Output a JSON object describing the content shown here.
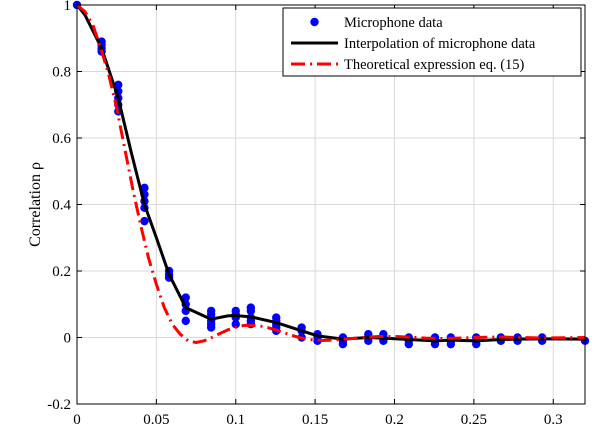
{
  "chart_data": {
    "type": "scatter",
    "title": "",
    "xlabel": "",
    "ylabel": "Correlation ρ",
    "xlim": [
      0,
      0.32
    ],
    "ylim": [
      -0.2,
      1.0
    ],
    "x_ticks": [
      0,
      0.05,
      0.1,
      0.15,
      0.2,
      0.25,
      0.3
    ],
    "x_tick_labels": [
      "0",
      "0.05",
      "0.1",
      "0.15",
      "0.2",
      "0.25",
      "0.3"
    ],
    "y_ticks": [
      -0.2,
      0,
      0.2,
      0.4,
      0.6,
      0.8,
      1.0
    ],
    "y_tick_labels": [
      "-0.2",
      "0",
      "0.2",
      "0.4",
      "0.6",
      "0.8",
      "1"
    ],
    "grid": true,
    "legend_position": "top-right",
    "series": [
      {
        "name": "Microphone data",
        "kind": "scatter",
        "color": "#0000ff",
        "points": [
          [
            0,
            1.0
          ],
          [
            0.0155,
            0.89
          ],
          [
            0.0155,
            0.88
          ],
          [
            0.0155,
            0.87
          ],
          [
            0.0155,
            0.86
          ],
          [
            0.026,
            0.76
          ],
          [
            0.026,
            0.74
          ],
          [
            0.026,
            0.72
          ],
          [
            0.026,
            0.7
          ],
          [
            0.026,
            0.68
          ],
          [
            0.0425,
            0.45
          ],
          [
            0.0425,
            0.43
          ],
          [
            0.0425,
            0.41
          ],
          [
            0.0425,
            0.39
          ],
          [
            0.0425,
            0.35
          ],
          [
            0.058,
            0.2
          ],
          [
            0.058,
            0.19
          ],
          [
            0.058,
            0.18
          ],
          [
            0.0685,
            0.12
          ],
          [
            0.0685,
            0.1
          ],
          [
            0.0685,
            0.08
          ],
          [
            0.0685,
            0.05
          ],
          [
            0.0845,
            0.08
          ],
          [
            0.0845,
            0.07
          ],
          [
            0.0845,
            0.06
          ],
          [
            0.0845,
            0.05
          ],
          [
            0.0845,
            0.04
          ],
          [
            0.0845,
            0.03
          ],
          [
            0.1,
            0.08
          ],
          [
            0.1,
            0.07
          ],
          [
            0.1,
            0.06
          ],
          [
            0.1,
            0.04
          ],
          [
            0.1095,
            0.09
          ],
          [
            0.1095,
            0.08
          ],
          [
            0.1095,
            0.06
          ],
          [
            0.1095,
            0.05
          ],
          [
            0.1095,
            0.04
          ],
          [
            0.1255,
            0.06
          ],
          [
            0.1255,
            0.05
          ],
          [
            0.1255,
            0.04
          ],
          [
            0.1255,
            0.03
          ],
          [
            0.1255,
            0.02
          ],
          [
            0.1415,
            0.03
          ],
          [
            0.1415,
            0.02
          ],
          [
            0.1415,
            0.0
          ],
          [
            0.1515,
            0.01
          ],
          [
            0.1515,
            0.0
          ],
          [
            0.1515,
            -0.01
          ],
          [
            0.1675,
            0.0
          ],
          [
            0.1675,
            -0.01
          ],
          [
            0.1675,
            -0.02
          ],
          [
            0.1835,
            0.01
          ],
          [
            0.1835,
            0.0
          ],
          [
            0.1835,
            -0.01
          ],
          [
            0.193,
            0.01
          ],
          [
            0.193,
            0.0
          ],
          [
            0.193,
            -0.01
          ],
          [
            0.209,
            0.0
          ],
          [
            0.209,
            -0.01
          ],
          [
            0.209,
            -0.02
          ],
          [
            0.2255,
            0.0
          ],
          [
            0.2255,
            -0.01
          ],
          [
            0.2255,
            -0.02
          ],
          [
            0.2355,
            0.0
          ],
          [
            0.2355,
            -0.01
          ],
          [
            0.2355,
            -0.02
          ],
          [
            0.2515,
            0.0
          ],
          [
            0.2515,
            -0.01
          ],
          [
            0.2515,
            -0.02
          ],
          [
            0.267,
            0.0
          ],
          [
            0.267,
            -0.01
          ],
          [
            0.2775,
            0.0
          ],
          [
            0.2775,
            -0.01
          ],
          [
            0.293,
            0.0
          ],
          [
            0.293,
            -0.01
          ],
          [
            0.32,
            -0.01
          ]
        ]
      },
      {
        "name": "Interpolation of microphone data",
        "kind": "line",
        "color": "#000000",
        "points": [
          [
            0,
            1.0
          ],
          [
            0.005,
            0.97
          ],
          [
            0.0155,
            0.87
          ],
          [
            0.026,
            0.72
          ],
          [
            0.034,
            0.56
          ],
          [
            0.0425,
            0.4
          ],
          [
            0.05,
            0.3
          ],
          [
            0.058,
            0.19
          ],
          [
            0.0685,
            0.09
          ],
          [
            0.0845,
            0.055
          ],
          [
            0.095,
            0.065
          ],
          [
            0.1,
            0.066
          ],
          [
            0.1095,
            0.062
          ],
          [
            0.1255,
            0.045
          ],
          [
            0.1415,
            0.02
          ],
          [
            0.1515,
            0.005
          ],
          [
            0.1675,
            -0.005
          ],
          [
            0.1835,
            0.0
          ],
          [
            0.193,
            -0.002
          ],
          [
            0.209,
            -0.006
          ],
          [
            0.2255,
            -0.01
          ],
          [
            0.2355,
            -0.008
          ],
          [
            0.2515,
            -0.01
          ],
          [
            0.267,
            -0.006
          ],
          [
            0.2775,
            -0.005
          ],
          [
            0.293,
            -0.004
          ],
          [
            0.32,
            -0.005
          ]
        ]
      },
      {
        "name": "Theoretical expression eq. (15)",
        "kind": "line",
        "color": "#ff0000",
        "dash": "dashdot",
        "points": [
          [
            0,
            1.0
          ],
          [
            0.005,
            0.98
          ],
          [
            0.01,
            0.94
          ],
          [
            0.015,
            0.87
          ],
          [
            0.02,
            0.79
          ],
          [
            0.025,
            0.69
          ],
          [
            0.03,
            0.57
          ],
          [
            0.035,
            0.45
          ],
          [
            0.04,
            0.34
          ],
          [
            0.045,
            0.24
          ],
          [
            0.05,
            0.16
          ],
          [
            0.055,
            0.09
          ],
          [
            0.06,
            0.04
          ],
          [
            0.065,
            0.01
          ],
          [
            0.07,
            -0.01
          ],
          [
            0.075,
            -0.015
          ],
          [
            0.08,
            -0.01
          ],
          [
            0.085,
            0.0
          ],
          [
            0.09,
            0.012
          ],
          [
            0.095,
            0.023
          ],
          [
            0.1,
            0.031
          ],
          [
            0.105,
            0.036
          ],
          [
            0.11,
            0.037
          ],
          [
            0.115,
            0.035
          ],
          [
            0.12,
            0.03
          ],
          [
            0.125,
            0.023
          ],
          [
            0.13,
            0.015
          ],
          [
            0.135,
            0.007
          ],
          [
            0.14,
            0.0
          ],
          [
            0.145,
            -0.005
          ],
          [
            0.15,
            -0.008
          ],
          [
            0.155,
            -0.009
          ],
          [
            0.16,
            -0.008
          ],
          [
            0.17,
            -0.004
          ],
          [
            0.18,
            0.0
          ],
          [
            0.19,
            0.003
          ],
          [
            0.2,
            0.003
          ],
          [
            0.21,
            0.001
          ],
          [
            0.22,
            -0.002
          ],
          [
            0.23,
            -0.003
          ],
          [
            0.24,
            -0.002
          ],
          [
            0.25,
            0.0
          ],
          [
            0.26,
            0.001
          ],
          [
            0.27,
            0.001
          ],
          [
            0.28,
            0.0
          ],
          [
            0.29,
            -0.001
          ],
          [
            0.3,
            -0.001
          ],
          [
            0.32,
            0.0
          ]
        ]
      }
    ]
  }
}
